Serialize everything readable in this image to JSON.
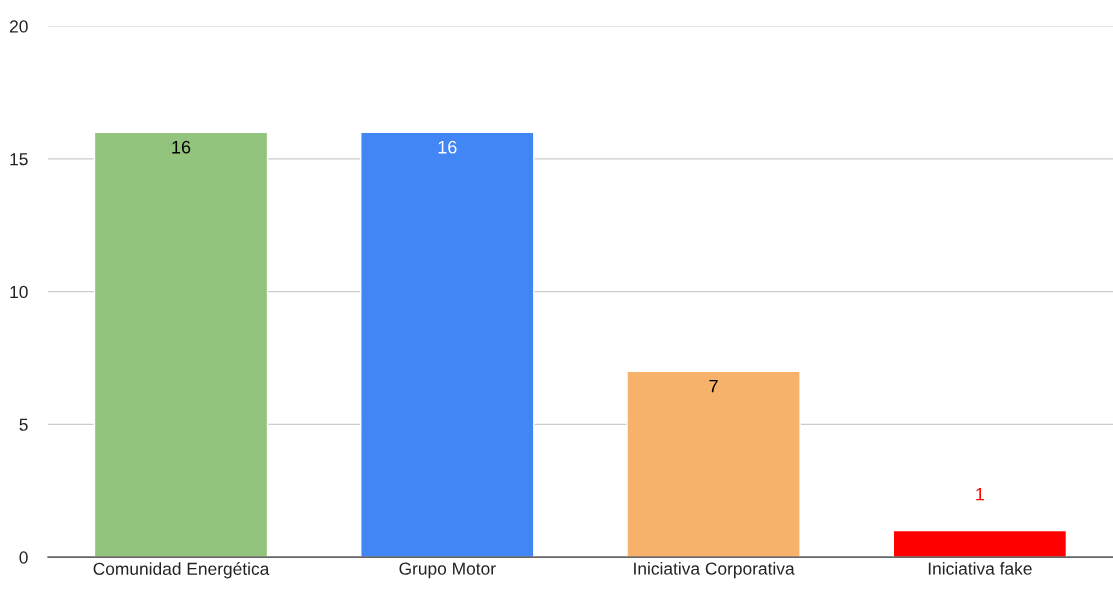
{
  "chart_data": {
    "type": "bar",
    "categories": [
      "Comunidad Energética",
      "Grupo Motor",
      "Iniciativa Corporativa",
      "Iniciativa fake"
    ],
    "values": [
      16,
      16,
      7,
      1
    ],
    "colors": [
      "#93c47d",
      "#4285f4",
      "#f6b26b",
      "#ff0000"
    ],
    "ylim": [
      0,
      20
    ],
    "yticks": [
      0,
      5,
      10,
      15,
      20
    ],
    "grid": "y",
    "data_labels": true
  }
}
